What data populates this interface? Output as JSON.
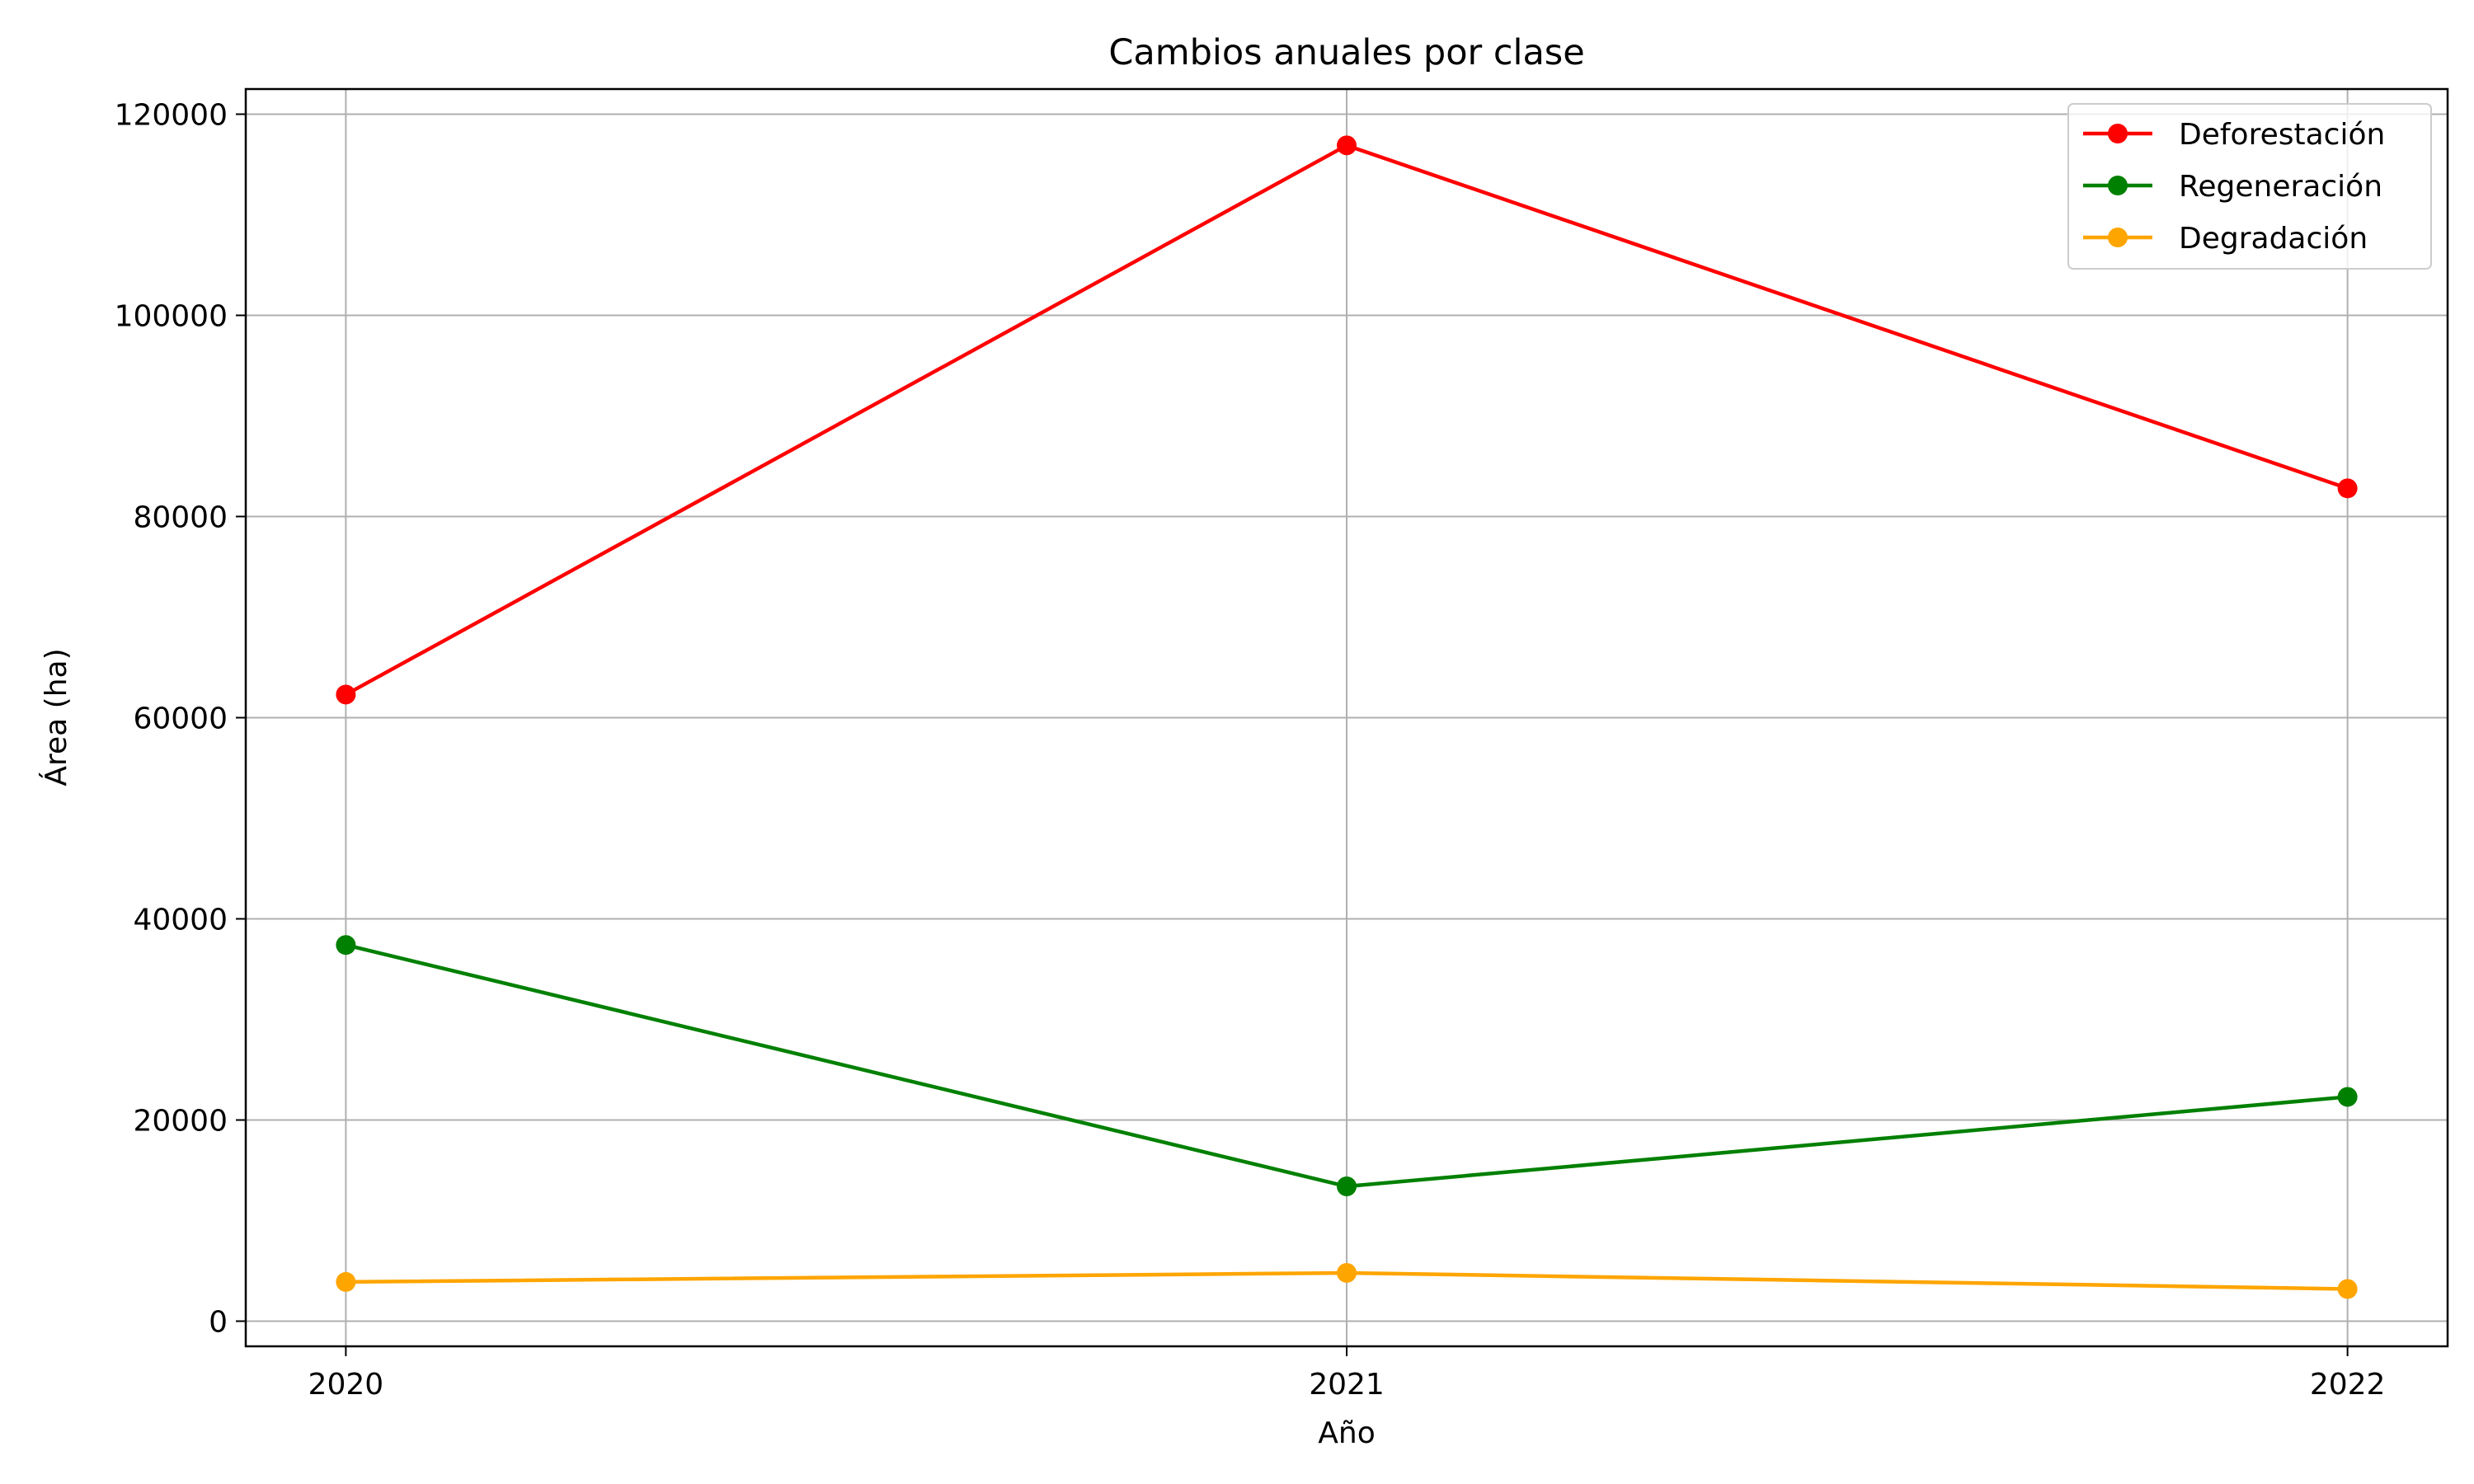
{
  "chart_data": {
    "type": "line",
    "title": "Cambios anuales por clase",
    "xlabel": "Año",
    "ylabel": "Área (ha)",
    "x": [
      2020,
      2021,
      2022
    ],
    "x_tick_labels": [
      "2020",
      "2021",
      "2022"
    ],
    "ylim": [
      -2500,
      122500
    ],
    "y_ticks": [
      0,
      20000,
      40000,
      60000,
      80000,
      100000,
      120000
    ],
    "y_tick_labels": [
      "0",
      "20000",
      "40000",
      "60000",
      "80000",
      "100000",
      "120000"
    ],
    "grid": true,
    "legend_position": "top-right",
    "series": [
      {
        "name": "Deforestación",
        "color": "#ff0000",
        "marker": "circle",
        "values": [
          62300,
          116900,
          82800
        ]
      },
      {
        "name": "Regeneración",
        "color": "#008000",
        "marker": "circle",
        "values": [
          37400,
          13400,
          22300
        ]
      },
      {
        "name": "Degradación",
        "color": "#ffa500",
        "marker": "circle",
        "values": [
          3900,
          4800,
          3200
        ]
      }
    ]
  }
}
